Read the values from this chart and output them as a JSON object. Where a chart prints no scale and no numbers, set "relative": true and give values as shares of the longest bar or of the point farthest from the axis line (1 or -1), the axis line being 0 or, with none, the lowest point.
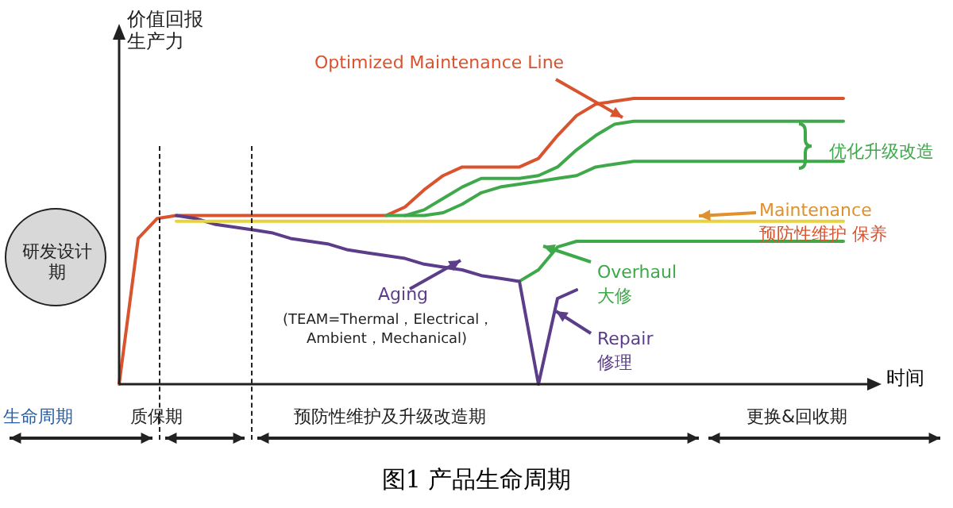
{
  "chart_data": {
    "type": "line",
    "title": "图1 产品生命周期",
    "xlabel": "时间",
    "ylabel": "价值回报生产力",
    "relative": true,
    "marker": "none",
    "line_style": "solid",
    "legend": false,
    "categories": [
      null,
      null,
      null,
      null,
      null,
      null,
      null,
      null,
      null,
      null,
      null,
      null,
      null,
      null,
      null,
      null,
      null,
      null,
      null,
      null,
      null,
      null,
      null,
      null,
      null,
      null,
      null,
      null,
      null,
      null,
      null,
      null,
      null,
      null,
      null,
      null,
      null,
      null,
      null
    ],
    "series": [
      {
        "color": "#e8d33c",
        "values": [
          null,
          null,
          null,
          0.57,
          0.57,
          0.57,
          0.57,
          0.57,
          0.57,
          0.57,
          0.57,
          0.57,
          0.57,
          0.57,
          0.57,
          0.57,
          0.57,
          0.57,
          0.57,
          0.57,
          0.57,
          0.57,
          0.57,
          0.57,
          0.57,
          0.57,
          0.57,
          0.57,
          0.57,
          0.57,
          0.57,
          0.57,
          0.57,
          0.57,
          0.57,
          0.57,
          0.57,
          0.57,
          0.57
        ]
      },
      {
        "color": "#5b3d8a",
        "values": [
          null,
          null,
          null,
          0.59,
          0.58,
          0.56,
          0.55,
          0.54,
          0.53,
          0.51,
          0.5,
          0.49,
          0.47,
          0.46,
          0.45,
          0.44,
          0.42,
          0.41,
          0.4,
          0.38,
          0.37,
          0.36,
          0,
          0.3,
          0.33,
          null,
          null,
          null,
          null,
          null,
          null,
          null,
          null,
          null,
          null,
          null,
          null,
          null,
          null
        ]
      },
      {
        "color": "#3fa84a",
        "values": [
          null,
          null,
          null,
          null,
          null,
          null,
          null,
          null,
          null,
          null,
          null,
          null,
          null,
          null,
          null,
          null,
          null,
          null,
          null,
          null,
          null,
          0.36,
          0.4,
          0.48,
          0.5,
          0.5,
          0.5,
          0.5,
          0.5,
          0.5,
          0.5,
          0.5,
          0.5,
          0.5,
          0.5,
          0.5,
          0.5,
          0.5,
          0.5
        ]
      },
      {
        "color": "#3fa84a",
        "values": [
          null,
          null,
          null,
          null,
          null,
          null,
          null,
          null,
          null,
          null,
          null,
          null,
          null,
          null,
          null,
          0.59,
          0.59,
          0.6,
          0.63,
          0.67,
          0.69,
          0.7,
          0.71,
          0.72,
          0.73,
          0.76,
          0.77,
          0.78,
          0.78,
          0.78,
          0.78,
          0.78,
          0.78,
          0.78,
          0.78,
          0.78,
          0.78,
          0.78,
          0.78
        ]
      },
      {
        "color": "#3fa84a",
        "values": [
          null,
          null,
          null,
          null,
          null,
          null,
          null,
          null,
          null,
          null,
          null,
          null,
          null,
          null,
          0.59,
          0.59,
          0.61,
          0.65,
          0.69,
          0.72,
          0.72,
          0.72,
          0.73,
          0.76,
          0.82,
          0.87,
          0.91,
          0.92,
          0.92,
          0.92,
          0.92,
          0.92,
          0.92,
          0.92,
          0.92,
          0.92,
          0.92,
          0.92,
          0.92
        ]
      },
      {
        "color": "#d8532e",
        "values": [
          0,
          0.51,
          0.58,
          0.59,
          0.59,
          0.59,
          0.59,
          0.59,
          0.59,
          0.59,
          0.59,
          0.59,
          0.59,
          0.59,
          0.59,
          0.62,
          0.68,
          0.73,
          0.76,
          0.76,
          0.76,
          0.76,
          0.79,
          0.87,
          0.94,
          0.98,
          0.99,
          1,
          1,
          1,
          1,
          1,
          1,
          1,
          1,
          1,
          1,
          1,
          1
        ]
      }
    ],
    "annotations": [
      "Optimized Maintenance Line",
      "优化升级改造",
      "Maintenance",
      "预防性维护 保养",
      "Overhaul",
      "大修",
      "Aging",
      "(TEAM=Thermal，Electrical，",
      "Ambient，Mechanical)",
      "Repair",
      "修理",
      "研发设计期",
      "生命周期",
      "质保期",
      "预防性维护及升级改造期",
      "更换&回收期"
    ]
  }
}
